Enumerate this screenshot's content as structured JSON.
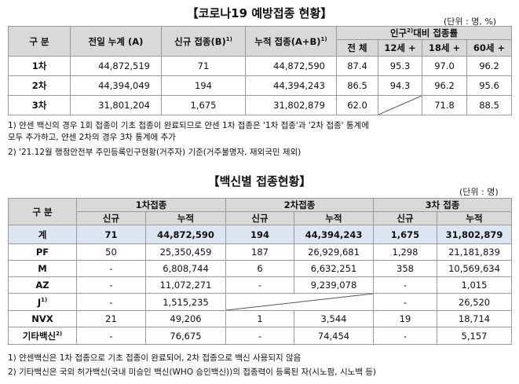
{
  "section1": {
    "title": "【코로나19 예방접종 현황】",
    "unit": "(단위 : 명, %)",
    "headers": {
      "category": "구 분",
      "prev_cum": "전일 누계 (A)",
      "new": "신규 접종(B)",
      "new_sup": "1)",
      "cum": "누적 접종(A+B)",
      "cum_sup": "1)",
      "ratio": "인구",
      "ratio_sup": "2)",
      "ratio_rest": "대비 접종률",
      "total": "전 체",
      "age12": "12세 +",
      "age18": "18세 +",
      "age60": "60세 +"
    },
    "rows": [
      {
        "label": "1차",
        "prev": "44,872,519",
        "new": "71",
        "cum": "44,872,590",
        "total": "87.4",
        "a12": "95.3",
        "a18": "97.0",
        "a60": "96.2"
      },
      {
        "label": "2차",
        "prev": "44,394,049",
        "new": "194",
        "cum": "44,394,243",
        "total": "86.5",
        "a12": "94.3",
        "a18": "96.2",
        "a60": "95.6"
      },
      {
        "label": "3차",
        "prev": "31,801,204",
        "new": "1,675",
        "cum": "31,802,879",
        "total": "62.0",
        "a12": "",
        "a18": "71.8",
        "a60": "88.5"
      }
    ],
    "notes": [
      "1)  얀센 백신의 경우 1회 접종이 기초 접종이 완료되므로 얀센 1차 접종은 '1차 접종'과 '2차 접종' 통계에",
      "     모두 추가하고, 얀센 2차의 경우 3차 통계에 추가",
      "2)  '21.12월 행정안전부 주민등록인구현황(거주자) 기준(거주불명자, 재외국민 제외)"
    ]
  },
  "section2": {
    "title": "【백신별 접종현황】",
    "unit": "(단위 : 명)",
    "headers": {
      "category": "구 분",
      "dose1": "1차접종",
      "dose2": "2차접종",
      "dose3": "3차 접종",
      "new": "신규",
      "cum": "누적"
    },
    "rows": [
      {
        "label": "계",
        "sup": "",
        "d1n": "71",
        "d1c": "44,872,590",
        "d2n": "194",
        "d2c": "44,394,243",
        "d3n": "1,675",
        "d3c": "31,802,879"
      },
      {
        "label": "PF",
        "sup": "",
        "d1n": "50",
        "d1c": "25,350,459",
        "d2n": "187",
        "d2c": "26,929,681",
        "d3n": "1,298",
        "d3c": "21,181,839"
      },
      {
        "label": "M",
        "sup": "",
        "d1n": "-",
        "d1c": "6,808,744",
        "d2n": "6",
        "d2c": "6,632,251",
        "d3n": "358",
        "d3c": "10,569,634"
      },
      {
        "label": "AZ",
        "sup": "",
        "d1n": "-",
        "d1c": "11,072,271",
        "d2n": "-",
        "d2c": "9,239,078",
        "d3n": "-",
        "d3c": "1,015"
      },
      {
        "label": "J",
        "sup": "1)",
        "d1n": "-",
        "d1c": "1,515,235",
        "d2n": "",
        "d2c": "",
        "d3n": "-",
        "d3c": "26,520"
      },
      {
        "label": "NVX",
        "sup": "",
        "d1n": "21",
        "d1c": "49,206",
        "d2n": "1",
        "d2c": "3,544",
        "d3n": "19",
        "d3c": "18,714"
      },
      {
        "label": "기타백신",
        "sup": "2)",
        "d1n": "-",
        "d1c": "76,675",
        "d2n": "-",
        "d2c": "74,454",
        "d3n": "-",
        "d3c": "5,157"
      }
    ],
    "notes": [
      "1)  얀센백신은 1차 접종으로 기초 접종이 완료되어, 2차 접종으로 백신 사용되지 않음",
      "2)  기타백신은 국외 허가백신(국내 미승인 백신(WHO 승인백신))의 접종력이 등록된 자(시노팜, 시노백 등)"
    ]
  }
}
